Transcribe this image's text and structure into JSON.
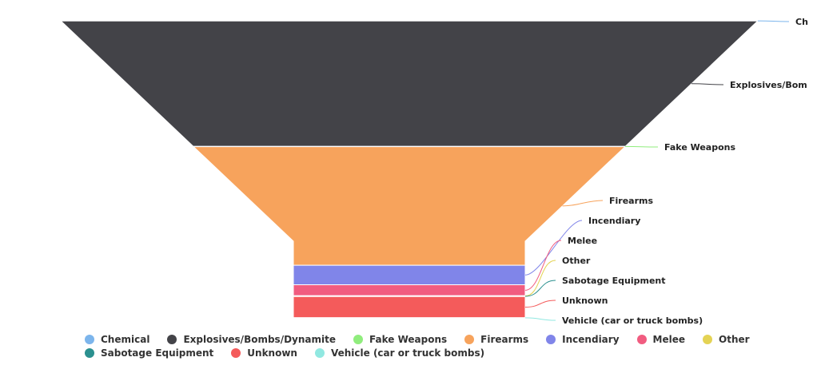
{
  "chart_data": {
    "type": "funnel",
    "categories": [
      "Chemical",
      "Explosives/Bombs/Dynamite",
      "Fake Weapons",
      "Firearms",
      "Incendiary",
      "Melee",
      "Other",
      "Sabotage Equipment",
      "Unknown",
      "Vehicle (car or truck bombs)"
    ],
    "data_labels": [
      "Ch",
      "Explosives/Bom",
      "Fake Weapons",
      "Firearms",
      "Incendiary",
      "Melee",
      "Other",
      "Sabotage Equipment",
      "Unknown",
      "Vehicle (car or truck bombs)"
    ],
    "values": [
      0.2,
      148,
      0.3,
      140,
      23,
      13,
      0.4,
      0.5,
      25,
      0.2
    ],
    "colors": [
      "#7cb5ec",
      "#434348",
      "#90ed7d",
      "#f7a35c",
      "#8085e9",
      "#f15c80",
      "#e4d354",
      "#2b908f",
      "#f45b5b",
      "#91e8e1"
    ],
    "legend": {
      "position": "bottom"
    }
  }
}
